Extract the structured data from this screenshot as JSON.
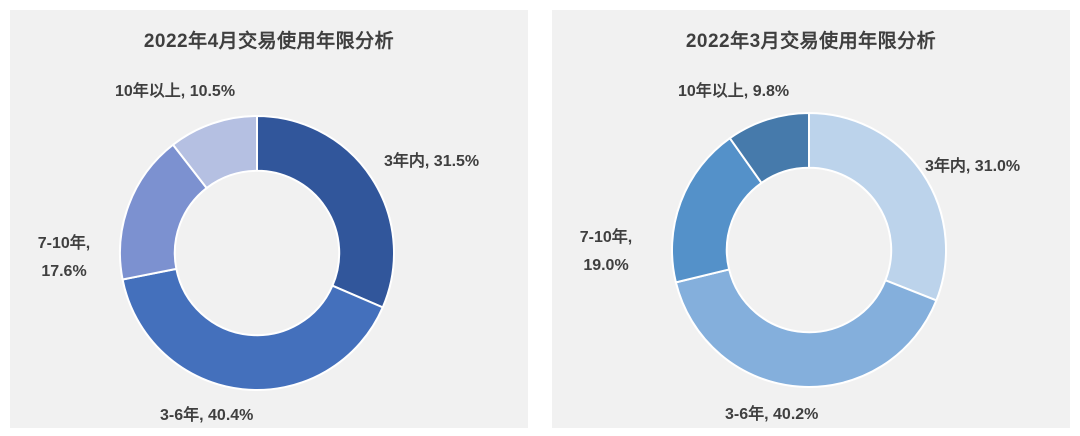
{
  "style": {
    "panel_background": "#f1f1f1",
    "text_color": "#3f3f3f",
    "separator_color": "#ffffff"
  },
  "chart_data": [
    {
      "type": "pie",
      "subtype": "donut",
      "title": "2022年4月交易使用年限分析",
      "categories": [
        "3年内",
        "3-6年",
        "7-10年",
        "10年以上"
      ],
      "values": [
        31.5,
        40.4,
        17.6,
        10.5
      ],
      "unit": "%",
      "colors": [
        "#31569B",
        "#4470BC",
        "#7C91D0",
        "#B5C0E2"
      ],
      "start_angle_deg": 0,
      "direction": "clockwise",
      "hole_ratio": 0.6,
      "legend": "none",
      "data_label_style": "category-and-percent-outside",
      "point_labels": {
        "right": "3年内, 31.5%",
        "bottom": "3-6年, 40.4%",
        "left_line1": "7-10年,",
        "left_line2": "17.6%",
        "top": "10年以上, 10.5%"
      }
    },
    {
      "type": "pie",
      "subtype": "donut",
      "title": "2022年3月交易使用年限分析",
      "categories": [
        "3年内",
        "3-6年",
        "7-10年",
        "10年以上"
      ],
      "values": [
        31.0,
        40.2,
        19.0,
        9.8
      ],
      "unit": "%",
      "colors": [
        "#BCD3EB",
        "#84AFDC",
        "#5491C9",
        "#467AAB"
      ],
      "start_angle_deg": 0,
      "direction": "clockwise",
      "hole_ratio": 0.6,
      "legend": "none",
      "data_label_style": "category-and-percent-outside",
      "point_labels": {
        "right": "3年内, 31.0%",
        "bottom": "3-6年, 40.2%",
        "left_line1": "7-10年,",
        "left_line2": "19.0%",
        "top": "10年以上, 9.8%"
      }
    }
  ]
}
